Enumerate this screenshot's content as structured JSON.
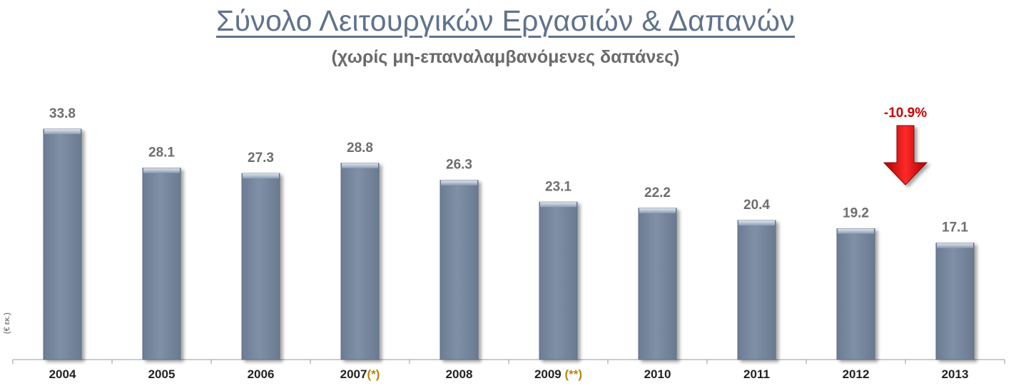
{
  "colors": {
    "bar": "#7b8ca3",
    "bar_dark": "#5f6f85",
    "bar_highlight": "#c9d4e2",
    "title": "#60728c",
    "arrow": "#cc0000",
    "note": "#b8860b"
  },
  "chart_data": {
    "type": "bar",
    "title": "Σύνολο Λειτουργικών Εργασιών & Δαπανών",
    "subtitle": "(χωρίς μη-επαναλαμβανόμενες δαπάνες)",
    "ylabel": "(€ εκ.)",
    "xlabel": "",
    "categories": [
      "2004",
      "2005",
      "2006",
      "2007",
      "2008",
      "2009",
      "2010",
      "2011",
      "2012",
      "2013"
    ],
    "category_notes": [
      "",
      "",
      "",
      "(*)",
      "",
      "(**)",
      "",
      "",
      "",
      ""
    ],
    "values": [
      33.8,
      28.1,
      27.3,
      28.8,
      26.3,
      23.1,
      22.2,
      20.4,
      19.2,
      17.1
    ],
    "value_labels": [
      "33.8",
      "28.1",
      "27.3",
      "28.8",
      "26.3",
      "23.1",
      "22.2",
      "20.4",
      "19.2",
      "17.1"
    ],
    "ylim": [
      0,
      33.8
    ],
    "grid": false,
    "legend": "none",
    "annotations": [
      {
        "text": "-10.9%",
        "category": "2013",
        "marker": "down-arrow"
      }
    ]
  }
}
